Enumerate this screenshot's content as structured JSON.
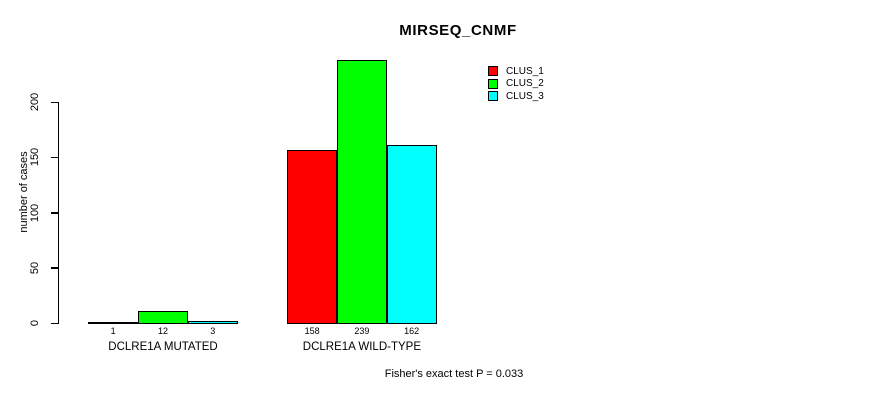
{
  "title": "MIRSEQ_CNMF",
  "y_axis": {
    "label": "number of cases",
    "ticks": [
      0,
      50,
      100,
      150,
      200
    ]
  },
  "legend": {
    "items": [
      {
        "label": "CLUS_1",
        "color": "#FF0000"
      },
      {
        "label": "CLUS_2",
        "color": "#00FF00"
      },
      {
        "label": "CLUS_3",
        "color": "#00FFFF"
      }
    ]
  },
  "footer": {
    "text": "Fisher's exact test P = 0.033"
  },
  "chart_data": {
    "type": "bar",
    "title": "MIRSEQ_CNMF",
    "categories": [
      "DCLRE1A MUTATED",
      "DCLRE1A WILD-TYPE"
    ],
    "series": [
      {
        "name": "CLUS_1",
        "color": "#FF0000",
        "values": [
          1,
          158
        ]
      },
      {
        "name": "CLUS_2",
        "color": "#00FF00",
        "values": [
          12,
          239
        ]
      },
      {
        "name": "CLUS_3",
        "color": "#00FFFF",
        "values": [
          3,
          162
        ]
      }
    ],
    "xlabel": "",
    "ylabel": "number of cases",
    "ylim": [
      0,
      240
    ],
    "yticks": [
      0,
      50,
      100,
      150,
      200
    ],
    "bar_value_labels": [
      [
        1,
        12,
        3
      ],
      [
        158,
        239,
        162
      ]
    ],
    "annotation": "Fisher's exact test P = 0.033",
    "legend_position": "top-right",
    "grid": false
  }
}
